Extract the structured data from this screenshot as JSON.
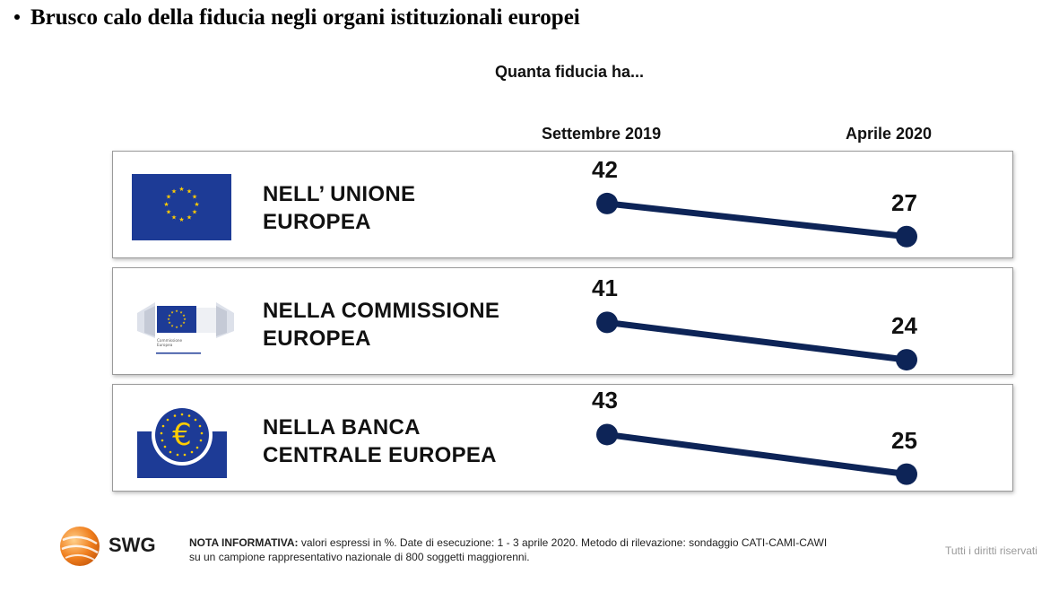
{
  "headline": "Brusco calo della fiducia negli organi istituzionali europei",
  "chart_data": {
    "type": "line",
    "title": "Quanta fiducia ha...",
    "categories": [
      "Settembre 2019",
      "Aprile 2020"
    ],
    "series": [
      {
        "name": "NELL’ UNIONE EUROPEA",
        "line1": "NELL’ UNIONE",
        "line2": "EUROPEA",
        "values": [
          42,
          27
        ]
      },
      {
        "name": "NELLA COMMISSIONE EUROPEA",
        "line1": "NELLA COMMISSIONE",
        "line2": "EUROPEA",
        "values": [
          41,
          24
        ]
      },
      {
        "name": "NELLA BANCA CENTRALE EUROPEA",
        "line1": "NELLA BANCA",
        "line2": "CENTRALE EUROPEA",
        "values": [
          43,
          25
        ]
      }
    ],
    "line_color": "#0d2457",
    "unit": "%"
  },
  "emblems": [
    {
      "icon": "eu-flag-icon",
      "caption": ""
    },
    {
      "icon": "european-commission-logo-icon",
      "caption": "Commissione Europea"
    },
    {
      "icon": "ecb-euro-logo-icon",
      "caption": ""
    }
  ],
  "footer": {
    "brand": "SWG",
    "note_label": "NOTA INFORMATIVA:",
    "note_line1": " valori espressi in %. Date di esecuzione: 1 - 3 aprile 2020. Metodo di rilevazione: sondaggio CATI-CAMI-CAWI",
    "note_line2": "su un campione rappresentativo nazionale di 800 soggetti maggiorenni.",
    "rights": "Tutti i diritti riservati"
  },
  "colors": {
    "eu_blue": "#1d3b96",
    "eu_yellow": "#ffcc00",
    "swg_orange": "#f07f1e"
  }
}
